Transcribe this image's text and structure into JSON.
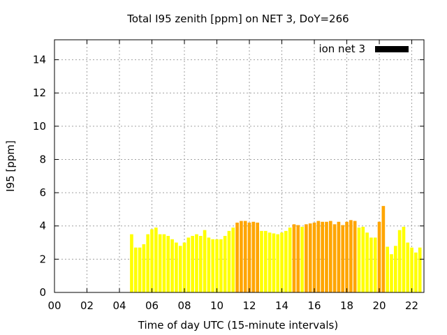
{
  "chart_data": {
    "type": "bar",
    "title": "Total I95 zenith [ppm] on NET 3, DoY=266",
    "xlabel": "Time of day UTC (15-minute intervals)",
    "ylabel": "I95 [ppm]",
    "xlim": [
      0,
      22.75
    ],
    "ylim": [
      0,
      15.2
    ],
    "x_ticks": [
      0,
      2,
      4,
      6,
      8,
      10,
      12,
      14,
      16,
      18,
      20,
      22
    ],
    "x_tick_labels": [
      "00",
      "02",
      "04",
      "06",
      "08",
      "10",
      "12",
      "14",
      "16",
      "18",
      "20",
      "22"
    ],
    "y_ticks": [
      0,
      2,
      4,
      6,
      8,
      10,
      12,
      14
    ],
    "y_tick_labels": [
      "0",
      "2",
      "4",
      "6",
      "8",
      "10",
      "12",
      "14"
    ],
    "grid": true,
    "legend": {
      "position": "top-right",
      "entries": [
        {
          "label": "ion net 3",
          "color": "#000000"
        }
      ]
    },
    "colors": {
      "low": "#ffff00",
      "high": "#ffa500"
    },
    "bar_width_hours": 0.2,
    "x": [
      4.75,
      5.0,
      5.25,
      5.5,
      5.75,
      6.0,
      6.25,
      6.5,
      6.75,
      7.0,
      7.25,
      7.5,
      7.75,
      8.0,
      8.25,
      8.5,
      8.75,
      9.0,
      9.25,
      9.5,
      9.75,
      10.0,
      10.25,
      10.5,
      10.75,
      11.0,
      11.25,
      11.5,
      11.75,
      12.0,
      12.25,
      12.5,
      12.75,
      13.0,
      13.25,
      13.5,
      13.75,
      14.0,
      14.25,
      14.5,
      14.75,
      15.0,
      15.25,
      15.5,
      15.75,
      16.0,
      16.25,
      16.5,
      16.75,
      17.0,
      17.25,
      17.5,
      17.75,
      18.0,
      18.25,
      18.5,
      18.75,
      19.0,
      19.25,
      19.5,
      19.75,
      20.0,
      20.25,
      20.5,
      20.75,
      21.0,
      21.25,
      21.5,
      21.75,
      22.0,
      22.25,
      22.5
    ],
    "values": [
      3.5,
      2.7,
      2.7,
      2.9,
      3.5,
      3.8,
      3.9,
      3.5,
      3.5,
      3.4,
      3.2,
      3.0,
      2.8,
      3.0,
      3.3,
      3.4,
      3.5,
      3.4,
      3.75,
      3.3,
      3.2,
      3.2,
      3.2,
      3.4,
      3.7,
      3.9,
      4.2,
      4.3,
      4.3,
      4.2,
      4.25,
      4.2,
      3.7,
      3.7,
      3.6,
      3.55,
      3.5,
      3.6,
      3.7,
      3.9,
      4.1,
      4.05,
      3.95,
      4.1,
      4.15,
      4.2,
      4.3,
      4.25,
      4.25,
      4.3,
      4.1,
      4.25,
      4.05,
      4.25,
      4.35,
      4.3,
      3.9,
      3.95,
      3.6,
      3.3,
      3.3,
      4.25,
      5.2,
      2.75,
      2.3,
      2.8,
      3.75,
      3.95,
      3.0,
      2.7,
      2.4,
      2.7
    ],
    "color_level": [
      "low",
      "low",
      "low",
      "low",
      "low",
      "low",
      "low",
      "low",
      "low",
      "low",
      "low",
      "low",
      "low",
      "low",
      "low",
      "low",
      "low",
      "low",
      "low",
      "low",
      "low",
      "low",
      "low",
      "low",
      "low",
      "low",
      "high",
      "high",
      "high",
      "high",
      "high",
      "high",
      "low",
      "low",
      "low",
      "low",
      "low",
      "low",
      "low",
      "low",
      "high",
      "high",
      "low",
      "high",
      "high",
      "high",
      "high",
      "high",
      "high",
      "high",
      "high",
      "high",
      "high",
      "high",
      "high",
      "high",
      "low",
      "low",
      "low",
      "low",
      "low",
      "high",
      "high",
      "low",
      "low",
      "low",
      "low",
      "low",
      "low",
      "low",
      "low",
      "low"
    ]
  }
}
